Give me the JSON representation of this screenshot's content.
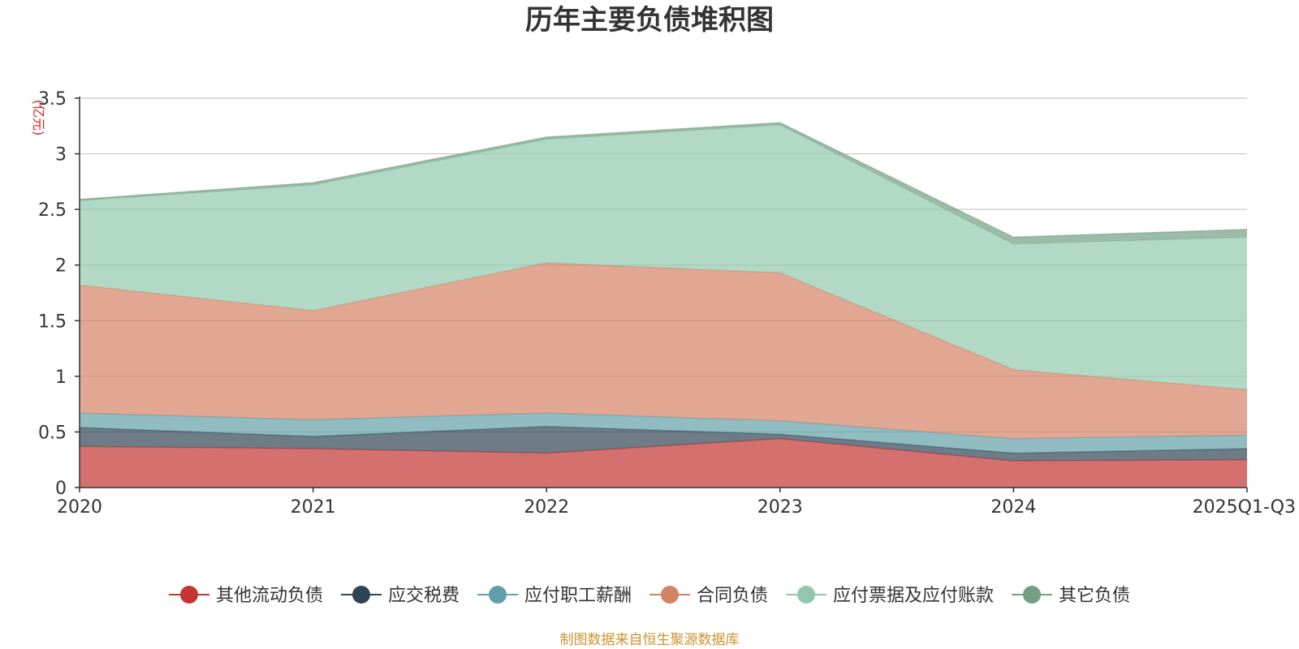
{
  "chart_data": {
    "type": "area",
    "stacked": true,
    "title": "历年主要负债堆积图",
    "y_unit": "(亿元)",
    "categories": [
      "2020",
      "2021",
      "2022",
      "2023",
      "2024",
      "2025Q1-Q3"
    ],
    "ylim": [
      0,
      3.5
    ],
    "y_ticks": [
      "0",
      "0.5",
      "1",
      "1.5",
      "2",
      "2.5",
      "3",
      "3.5"
    ],
    "grid": true,
    "legend_position": "bottom",
    "series": [
      {
        "name": "其他流动负债",
        "color": "#c23531",
        "values": [
          0.37,
          0.35,
          0.31,
          0.44,
          0.24,
          0.25
        ]
      },
      {
        "name": "应交税费",
        "color": "#2f4554",
        "values": [
          0.17,
          0.11,
          0.24,
          0.04,
          0.07,
          0.1
        ]
      },
      {
        "name": "应付职工薪酬",
        "color": "#61a0a8",
        "values": [
          0.13,
          0.15,
          0.12,
          0.12,
          0.13,
          0.12
        ]
      },
      {
        "name": "合同负债",
        "color": "#d48265",
        "values": [
          1.15,
          0.98,
          1.35,
          1.33,
          0.62,
          0.41
        ]
      },
      {
        "name": "应付票据及应付账款",
        "color": "#91c7ae",
        "values": [
          0.76,
          1.13,
          1.11,
          1.33,
          1.13,
          1.37
        ]
      },
      {
        "name": "其它负债",
        "color": "#749f83",
        "values": [
          0.01,
          0.02,
          0.02,
          0.02,
          0.06,
          0.07
        ]
      }
    ],
    "source_note": "制图数据来自恒生聚源数据库"
  },
  "colors": {
    "title": "#333333",
    "unit": "#e01f1f",
    "source": "#c8952d",
    "grid": "#c8c8c8",
    "axis": "#333333"
  }
}
